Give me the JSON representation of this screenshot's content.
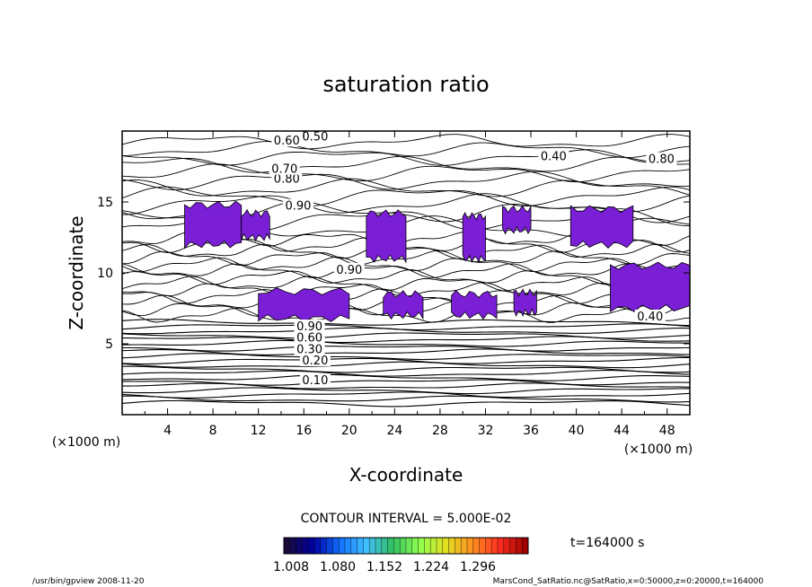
{
  "chart_data": {
    "type": "contour",
    "title": "saturation ratio",
    "xlabel": "X-coordinate",
    "ylabel": "Z-coordinate",
    "x_unit": "(×1000 m)",
    "y_unit": "(×1000 m)",
    "xlim": [
      0,
      50
    ],
    "ylim": [
      0,
      20
    ],
    "x_ticks": [
      4,
      8,
      12,
      16,
      20,
      24,
      28,
      32,
      36,
      40,
      44,
      48
    ],
    "y_ticks": [
      5,
      10,
      15
    ],
    "contour_labels": [
      {
        "text": "0.10",
        "x": 17.0,
        "z": 2.4
      },
      {
        "text": "0.20",
        "x": 17.0,
        "z": 3.8
      },
      {
        "text": "0.30",
        "x": 16.5,
        "z": 4.6
      },
      {
        "text": "0.60",
        "x": 16.5,
        "z": 5.4
      },
      {
        "text": "0.90",
        "x": 16.5,
        "z": 6.2
      },
      {
        "text": "0.90",
        "x": 20.0,
        "z": 10.2
      },
      {
        "text": "0.90",
        "x": 15.5,
        "z": 14.7
      },
      {
        "text": "0.80",
        "x": 14.5,
        "z": 16.6
      },
      {
        "text": "0.70",
        "x": 14.3,
        "z": 17.3
      },
      {
        "text": "0.60",
        "x": 14.5,
        "z": 19.3
      },
      {
        "text": "0.50",
        "x": 17.0,
        "z": 19.6
      },
      {
        "text": "0.40",
        "x": 38.0,
        "z": 18.2
      },
      {
        "text": "0.80",
        "x": 47.5,
        "z": 18.0
      },
      {
        "text": "0.40",
        "x": 46.5,
        "z": 6.9
      }
    ],
    "supersaturated_regions": [
      {
        "x": [
          5.5,
          10.5
        ],
        "z": [
          12.0,
          14.8
        ]
      },
      {
        "x": [
          10.5,
          13.0
        ],
        "z": [
          12.5,
          14.2
        ]
      },
      {
        "x": [
          21.5,
          25.0
        ],
        "z": [
          11.0,
          14.2
        ]
      },
      {
        "x": [
          30.0,
          32.0
        ],
        "z": [
          11.0,
          14.0
        ]
      },
      {
        "x": [
          33.5,
          36.0
        ],
        "z": [
          13.0,
          14.5
        ]
      },
      {
        "x": [
          39.5,
          45.0
        ],
        "z": [
          12.0,
          14.5
        ]
      },
      {
        "x": [
          43.0,
          50.0
        ],
        "z": [
          7.5,
          10.5
        ]
      },
      {
        "x": [
          12.0,
          20.0
        ],
        "z": [
          6.8,
          8.7
        ]
      },
      {
        "x": [
          23.0,
          26.5
        ],
        "z": [
          7.0,
          8.5
        ]
      },
      {
        "x": [
          29.0,
          33.0
        ],
        "z": [
          7.0,
          8.5
        ]
      },
      {
        "x": [
          34.5,
          36.5
        ],
        "z": [
          7.2,
          8.6
        ]
      }
    ],
    "colorbar": {
      "ticks": [
        "1.008",
        "1.080",
        "1.152",
        "1.224",
        "1.296"
      ],
      "colors": [
        "#1a0a3a",
        "#0000a0",
        "#1070ff",
        "#40c0ff",
        "#30c060",
        "#90ff50",
        "#e0e020",
        "#ff9020",
        "#ff3020",
        "#a00000"
      ]
    },
    "region_color": "#7a1fd6"
  },
  "contour_interval": "CONTOUR INTERVAL = 5.000E-02",
  "time_label": "t=164000 s",
  "footer_left": "/usr/bin/gpview  2008-11-20",
  "footer_right": "MarsCond_SatRatio.nc@SatRatio,x=0:50000,z=0:20000,t=164000"
}
